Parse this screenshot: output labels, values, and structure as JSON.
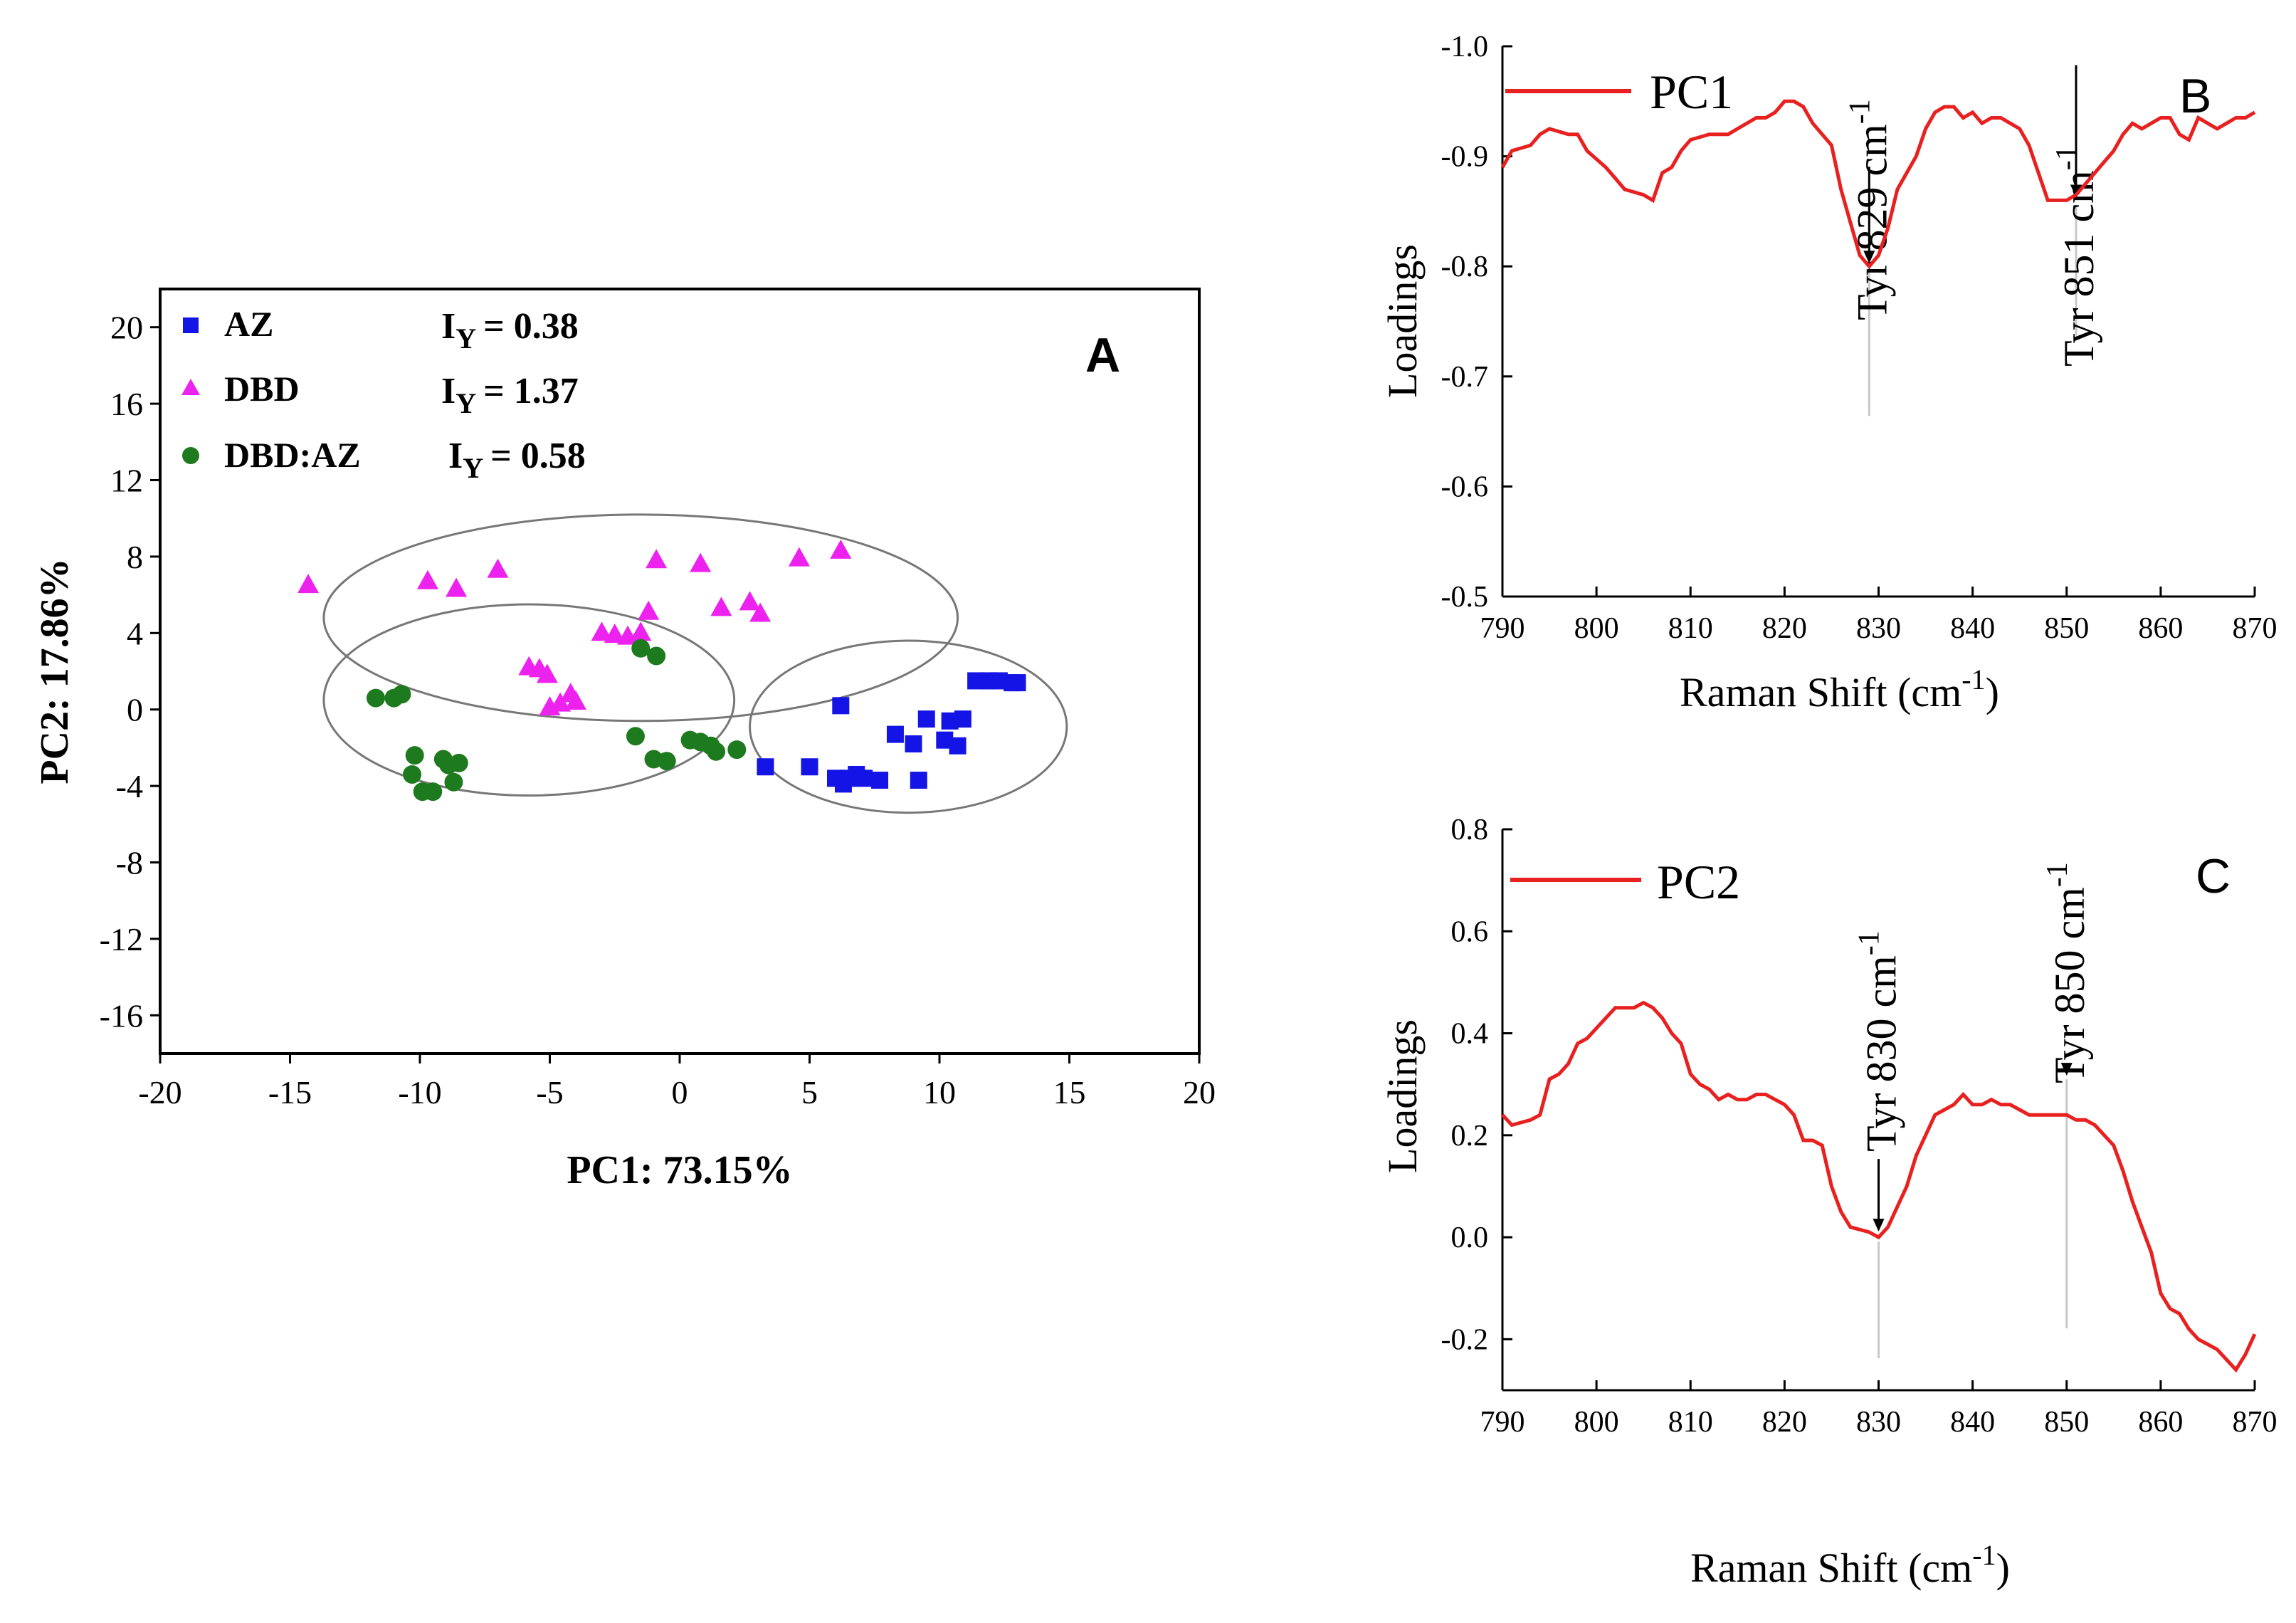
{
  "chart_data": [
    {
      "panel": "A",
      "type": "scatter",
      "panel_label": "A",
      "xlabel": "PC1: 73.15%",
      "ylabel": "PC2: 17.86%",
      "xlim": [
        -20,
        20
      ],
      "ylim": [
        -18,
        22
      ],
      "x_ticks": [
        -20,
        -15,
        -10,
        -5,
        0,
        5,
        10,
        15,
        20
      ],
      "y_ticks": [
        -16,
        -12,
        -8,
        -4,
        0,
        4,
        8,
        12,
        16,
        20
      ],
      "x_tick_labels": [
        "-20",
        "-15",
        "-10",
        "-5",
        "0",
        "5",
        "10",
        "15",
        "20"
      ],
      "y_tick_labels": [
        "-16",
        "-12",
        "-8",
        "-4",
        "0",
        "4",
        "8",
        "12",
        "16",
        "20"
      ],
      "series": [
        {
          "name": "AZ",
          "marker": "square",
          "color": "#1414e6",
          "iy_prefix": "I",
          "iy_sub": "Y",
          "iy_value": "=  0.38",
          "points": [
            [
              6.2,
              0.2
            ],
            [
              3.3,
              -3.0
            ],
            [
              5.0,
              -3.0
            ],
            [
              6.0,
              -3.6
            ],
            [
              6.3,
              -3.9
            ],
            [
              6.5,
              -3.6
            ],
            [
              6.8,
              -3.4
            ],
            [
              7.1,
              -3.6
            ],
            [
              7.7,
              -3.7
            ],
            [
              8.3,
              -1.3
            ],
            [
              9.0,
              -1.8
            ],
            [
              9.2,
              -3.7
            ],
            [
              9.5,
              -0.5
            ],
            [
              10.2,
              -1.6
            ],
            [
              10.4,
              -0.6
            ],
            [
              10.7,
              -1.9
            ],
            [
              10.9,
              -0.5
            ],
            [
              11.4,
              1.5
            ],
            [
              11.9,
              1.5
            ],
            [
              12.3,
              1.5
            ],
            [
              12.8,
              1.4
            ],
            [
              13.0,
              1.4
            ]
          ]
        },
        {
          "name": "DBD",
          "marker": "triangle",
          "color": "#ee22ee",
          "iy_prefix": "I",
          "iy_sub": "Y",
          "iy_value": "=  1.37",
          "points": [
            [
              -14.3,
              6.5
            ],
            [
              -9.7,
              6.7
            ],
            [
              -8.6,
              6.3
            ],
            [
              -7.0,
              7.3
            ],
            [
              -5.8,
              2.2
            ],
            [
              -5.4,
              2.1
            ],
            [
              -5.1,
              1.8
            ],
            [
              -5.0,
              0.1
            ],
            [
              -4.6,
              0.3
            ],
            [
              -4.2,
              0.8
            ],
            [
              -4.0,
              0.4
            ],
            [
              -3.0,
              4.0
            ],
            [
              -2.5,
              3.9
            ],
            [
              -2.0,
              3.8
            ],
            [
              -1.5,
              4.0
            ],
            [
              -1.2,
              5.1
            ],
            [
              -0.9,
              7.8
            ],
            [
              0.8,
              7.6
            ],
            [
              1.6,
              5.3
            ],
            [
              2.7,
              5.6
            ],
            [
              3.1,
              5.0
            ],
            [
              4.6,
              7.9
            ],
            [
              6.2,
              8.3
            ]
          ]
        },
        {
          "name": "DBD:AZ",
          "marker": "circle",
          "color": "#1e7a1e",
          "iy_prefix": "I",
          "iy_sub": "Y",
          "iy_value": "=  0.58",
          "points": [
            [
              -11.7,
              0.6
            ],
            [
              -11.0,
              0.6
            ],
            [
              -10.7,
              0.8
            ],
            [
              -10.2,
              -2.4
            ],
            [
              -10.3,
              -3.4
            ],
            [
              -9.9,
              -4.3
            ],
            [
              -9.5,
              -4.3
            ],
            [
              -9.1,
              -2.6
            ],
            [
              -8.9,
              -2.9
            ],
            [
              -8.7,
              -3.8
            ],
            [
              -8.5,
              -2.8
            ],
            [
              -1.5,
              3.2
            ],
            [
              -0.9,
              2.8
            ],
            [
              -1.7,
              -1.4
            ],
            [
              -1.0,
              -2.6
            ],
            [
              -0.5,
              -2.7
            ],
            [
              0.4,
              -1.6
            ],
            [
              0.8,
              -1.7
            ],
            [
              1.2,
              -1.9
            ],
            [
              1.4,
              -2.2
            ],
            [
              2.2,
              -2.1
            ]
          ]
        }
      ],
      "ellipses": [
        {
          "cx": -1.5,
          "cy": 4.8,
          "rx": 12.2,
          "ry": 5.4
        },
        {
          "cx": -5.8,
          "cy": 0.5,
          "rx": 7.9,
          "ry": 5.0
        },
        {
          "cx": 8.8,
          "cy": -0.9,
          "rx": 6.1,
          "ry": 4.5
        }
      ]
    },
    {
      "panel": "B",
      "type": "line",
      "panel_label": "B",
      "legend_label": "PC1",
      "ylabel": "Loadings",
      "xlabel_prefix": "Raman Shift (cm",
      "xlabel_sup": "-1",
      "xlabel_suffix": ")",
      "line_color": "#e82020",
      "xlim": [
        790,
        870
      ],
      "ylim": [
        -1.0,
        -0.5
      ],
      "y_inverted": true,
      "x_ticks": [
        790,
        800,
        810,
        820,
        830,
        840,
        850,
        860,
        870
      ],
      "y_ticks": [
        -0.5,
        -0.6,
        -0.7,
        -0.8,
        -0.9,
        -1.0
      ],
      "x_tick_labels": [
        "790",
        "800",
        "810",
        "820",
        "830",
        "840",
        "850",
        "860",
        "870"
      ],
      "y_tick_labels": [
        "-0.5",
        "-0.6",
        "-0.7",
        "-0.8",
        "-0.9",
        "-1.0"
      ],
      "x": [
        790,
        791,
        793,
        794,
        795,
        797,
        798,
        799,
        801,
        802,
        803,
        805,
        806,
        807,
        808,
        809,
        810,
        812,
        813,
        814,
        815,
        817,
        818,
        819,
        820,
        821,
        822,
        823,
        825,
        826,
        827,
        828,
        829,
        830,
        831,
        832,
        834,
        835,
        836,
        837,
        838,
        839,
        840,
        841,
        842,
        843,
        844,
        845,
        846,
        847,
        848,
        849,
        850,
        851,
        852,
        853,
        855,
        856,
        857,
        858,
        859,
        860,
        861,
        862,
        863,
        864,
        865,
        866,
        867,
        868,
        869,
        870
      ],
      "y": [
        -0.89,
        -0.905,
        -0.91,
        -0.92,
        -0.925,
        -0.92,
        -0.92,
        -0.905,
        -0.89,
        -0.88,
        -0.87,
        -0.865,
        -0.86,
        -0.885,
        -0.89,
        -0.905,
        -0.915,
        -0.92,
        -0.92,
        -0.92,
        -0.925,
        -0.935,
        -0.935,
        -0.94,
        -0.95,
        -0.95,
        -0.945,
        -0.93,
        -0.91,
        -0.87,
        -0.84,
        -0.81,
        -0.8,
        -0.81,
        -0.835,
        -0.87,
        -0.9,
        -0.925,
        -0.94,
        -0.945,
        -0.945,
        -0.935,
        -0.94,
        -0.93,
        -0.935,
        -0.935,
        -0.93,
        -0.925,
        -0.91,
        -0.885,
        -0.86,
        -0.86,
        -0.86,
        -0.865,
        -0.875,
        -0.885,
        -0.905,
        -0.92,
        -0.93,
        -0.925,
        -0.93,
        -0.935,
        -0.935,
        -0.92,
        -0.915,
        -0.935,
        -0.93,
        -0.925,
        -0.93,
        -0.935,
        -0.935,
        -0.94
      ],
      "annotations": [
        {
          "prefix": "Tyr  829 cm",
          "sup": "-1",
          "x": 829,
          "y": -0.8
        },
        {
          "prefix": "Tyr 851 cm",
          "sup": "-1",
          "x": 851,
          "y": -0.86
        }
      ]
    },
    {
      "panel": "C",
      "type": "line",
      "panel_label": "C",
      "legend_label": "PC2",
      "ylabel": "Loadings",
      "xlabel_prefix": "Raman Shift (cm",
      "xlabel_sup": "-1",
      "xlabel_suffix": ")",
      "line_color": "#e82020",
      "xlim": [
        790,
        870
      ],
      "ylim": [
        -0.3,
        0.8
      ],
      "y_inverted": false,
      "x_ticks": [
        790,
        800,
        810,
        820,
        830,
        840,
        850,
        860,
        870
      ],
      "y_ticks": [
        0.8,
        0.6,
        0.4,
        0.2,
        0.0,
        -0.2
      ],
      "x_tick_labels": [
        "790",
        "800",
        "810",
        "820",
        "830",
        "840",
        "850",
        "860",
        "870"
      ],
      "y_tick_labels": [
        "0.8",
        "0.6",
        "0.4",
        "0.2",
        "0.0",
        "-0.2"
      ],
      "x": [
        790,
        791,
        793,
        794,
        795,
        796,
        797,
        798,
        799,
        800,
        801,
        802,
        803,
        804,
        805,
        806,
        807,
        808,
        809,
        810,
        811,
        812,
        813,
        814,
        815,
        816,
        817,
        818,
        819,
        820,
        821,
        822,
        823,
        824,
        825,
        826,
        827,
        828,
        829,
        830,
        831,
        832,
        833,
        834,
        835,
        836,
        837,
        838,
        839,
        840,
        841,
        842,
        843,
        844,
        845,
        846,
        847,
        848,
        849,
        850,
        851,
        852,
        853,
        854,
        855,
        856,
        857,
        858,
        859,
        860,
        861,
        862,
        863,
        864,
        865,
        866,
        867,
        868,
        869,
        870
      ],
      "y": [
        0.24,
        0.22,
        0.23,
        0.24,
        0.31,
        0.32,
        0.34,
        0.38,
        0.39,
        0.41,
        0.43,
        0.45,
        0.45,
        0.45,
        0.46,
        0.45,
        0.43,
        0.4,
        0.38,
        0.32,
        0.3,
        0.29,
        0.27,
        0.28,
        0.27,
        0.27,
        0.28,
        0.28,
        0.27,
        0.26,
        0.24,
        0.19,
        0.19,
        0.18,
        0.1,
        0.05,
        0.02,
        0.015,
        0.01,
        0.0,
        0.02,
        0.06,
        0.1,
        0.16,
        0.2,
        0.24,
        0.25,
        0.26,
        0.28,
        0.26,
        0.26,
        0.27,
        0.26,
        0.26,
        0.25,
        0.24,
        0.24,
        0.24,
        0.24,
        0.24,
        0.23,
        0.23,
        0.22,
        0.2,
        0.18,
        0.13,
        0.07,
        0.02,
        -0.03,
        -0.11,
        -0.14,
        -0.15,
        -0.18,
        -0.2,
        -0.21,
        -0.22,
        -0.24,
        -0.26,
        -0.23,
        -0.19
      ],
      "annotations": [
        {
          "prefix": "Tyr  830 cm",
          "sup": "-1",
          "x": 830,
          "y": 0.0
        },
        {
          "prefix": "Tyr 850 cm",
          "sup": "-1",
          "x": 850,
          "y": 0.24
        }
      ]
    }
  ]
}
